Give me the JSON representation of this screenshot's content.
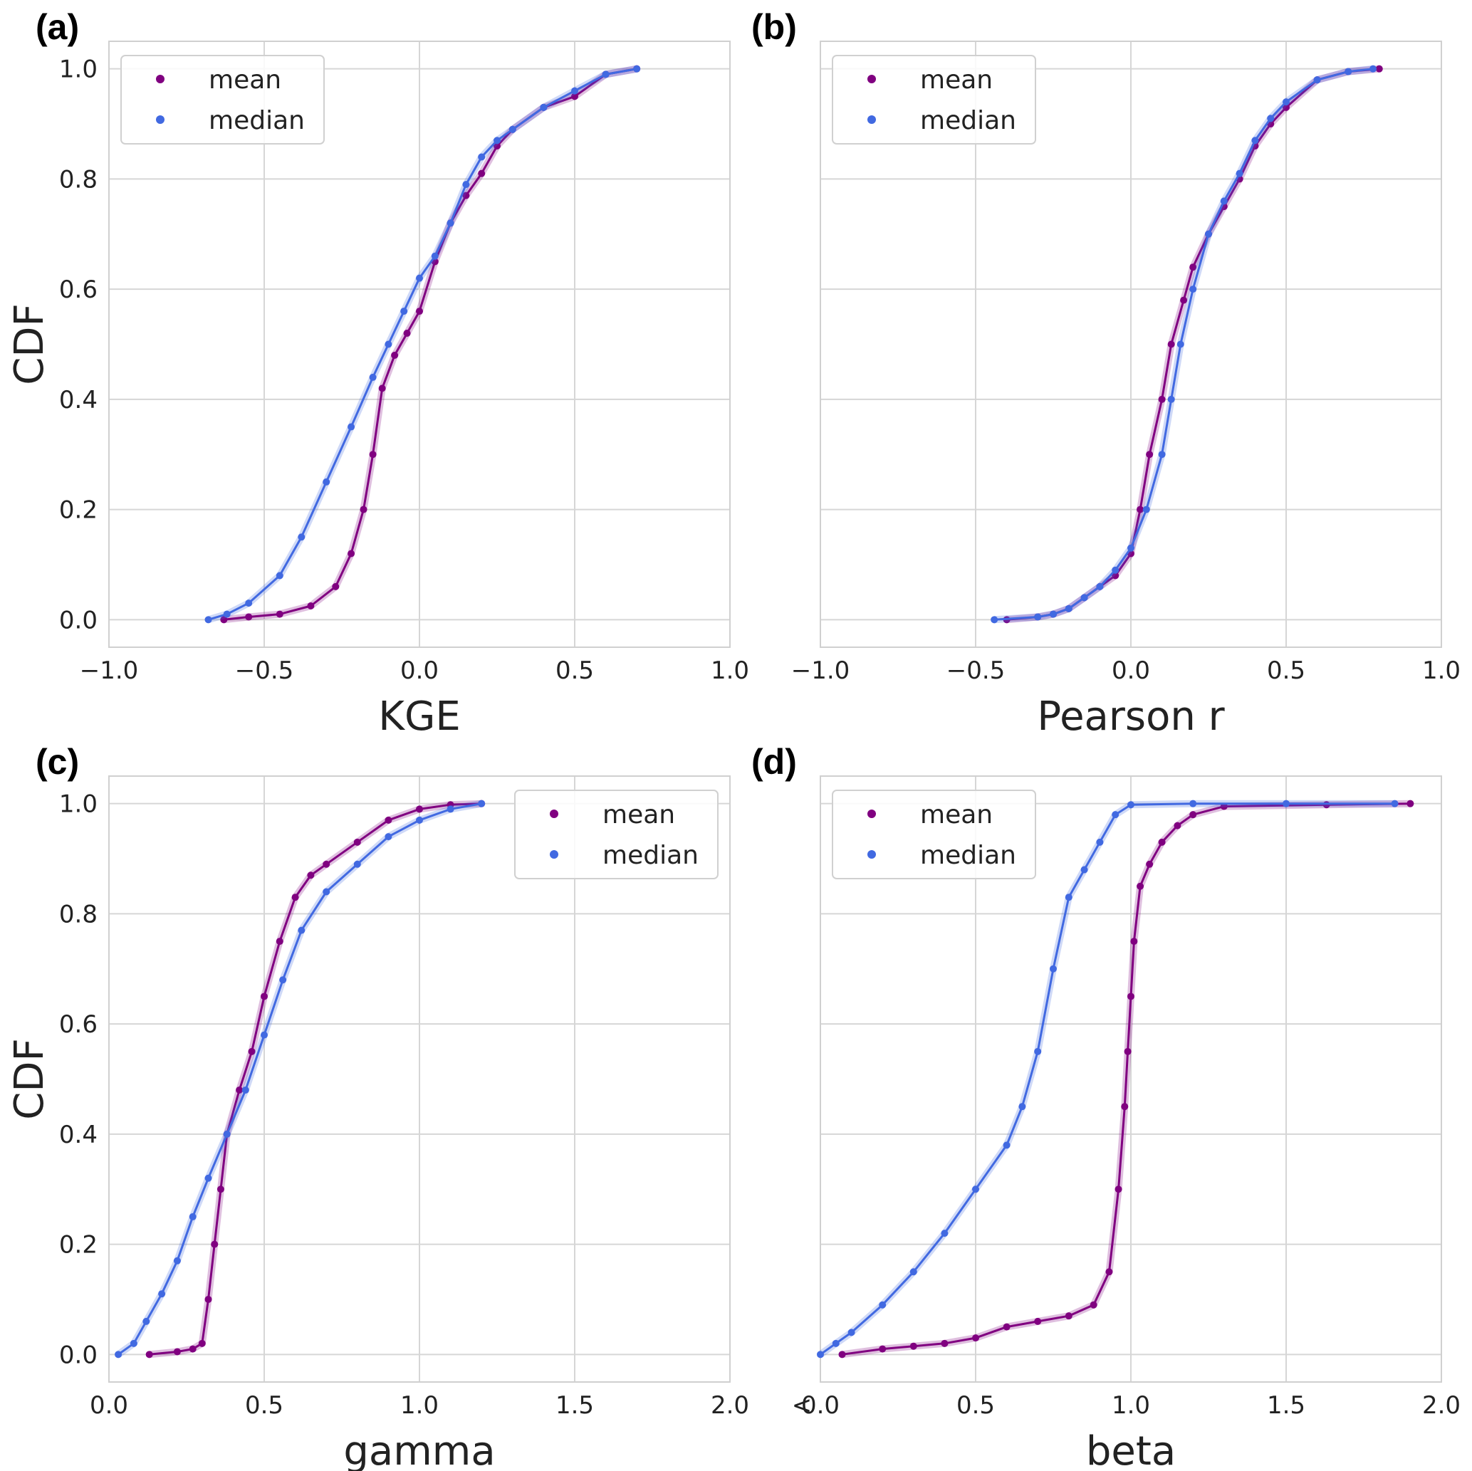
{
  "colors": {
    "mean": "#800080",
    "median": "#4169e1",
    "grid": "#d6d6d6"
  },
  "chart_data": [
    {
      "type": "line",
      "panel": "(a)",
      "xlabel": "KGE",
      "ylabel": "CDF",
      "xlim": [
        -1.0,
        1.0
      ],
      "ylim": [
        -0.05,
        1.05
      ],
      "xticks": [
        "−1.0",
        "−0.5",
        "0.0",
        "0.5",
        "1.0"
      ],
      "xtick_values": [
        -1.0,
        -0.5,
        0.0,
        0.5,
        1.0
      ],
      "yticks": [
        "0.0",
        "0.2",
        "0.4",
        "0.6",
        "0.8",
        "1.0"
      ],
      "ytick_values": [
        0,
        0.2,
        0.4,
        0.6,
        0.8,
        1.0
      ],
      "grid": true,
      "legend": "upper-left",
      "series": [
        {
          "name": "mean",
          "x": [
            -0.63,
            -0.55,
            -0.45,
            -0.35,
            -0.27,
            -0.22,
            -0.18,
            -0.15,
            -0.12,
            -0.08,
            -0.04,
            0.0,
            0.05,
            0.1,
            0.15,
            0.2,
            0.25,
            0.3,
            0.4,
            0.5,
            0.6,
            0.7
          ],
          "y": [
            0.0,
            0.005,
            0.01,
            0.025,
            0.06,
            0.12,
            0.2,
            0.3,
            0.42,
            0.48,
            0.52,
            0.56,
            0.65,
            0.72,
            0.77,
            0.81,
            0.86,
            0.89,
            0.93,
            0.95,
            0.99,
            1.0
          ]
        },
        {
          "name": "median",
          "x": [
            -0.68,
            -0.62,
            -0.55,
            -0.45,
            -0.38,
            -0.3,
            -0.22,
            -0.15,
            -0.1,
            -0.05,
            0.0,
            0.05,
            0.1,
            0.15,
            0.2,
            0.25,
            0.3,
            0.4,
            0.5,
            0.6,
            0.7
          ],
          "y": [
            0.0,
            0.01,
            0.03,
            0.08,
            0.15,
            0.25,
            0.35,
            0.44,
            0.5,
            0.56,
            0.62,
            0.66,
            0.72,
            0.79,
            0.84,
            0.87,
            0.89,
            0.93,
            0.96,
            0.99,
            1.0
          ]
        }
      ]
    },
    {
      "type": "line",
      "panel": "(b)",
      "xlabel": "Pearson r",
      "ylabel": "",
      "xlim": [
        -1.0,
        1.0
      ],
      "ylim": [
        -0.05,
        1.05
      ],
      "xticks": [
        "−1.0",
        "−0.5",
        "0.0",
        "0.5",
        "1.0"
      ],
      "xtick_values": [
        -1.0,
        -0.5,
        0.0,
        0.5,
        1.0
      ],
      "yticks": [],
      "ytick_values": [
        0,
        0.2,
        0.4,
        0.6,
        0.8,
        1.0
      ],
      "grid": true,
      "legend": "upper-left",
      "series": [
        {
          "name": "mean",
          "x": [
            -0.4,
            -0.3,
            -0.25,
            -0.2,
            -0.15,
            -0.1,
            -0.05,
            0.0,
            0.03,
            0.06,
            0.1,
            0.13,
            0.17,
            0.2,
            0.25,
            0.3,
            0.35,
            0.4,
            0.45,
            0.5,
            0.6,
            0.7,
            0.8
          ],
          "y": [
            0.0,
            0.005,
            0.01,
            0.02,
            0.04,
            0.06,
            0.08,
            0.12,
            0.2,
            0.3,
            0.4,
            0.5,
            0.58,
            0.64,
            0.7,
            0.75,
            0.8,
            0.86,
            0.9,
            0.93,
            0.98,
            0.995,
            1.0
          ]
        },
        {
          "name": "median",
          "x": [
            -0.44,
            -0.3,
            -0.25,
            -0.2,
            -0.15,
            -0.1,
            -0.05,
            0.0,
            0.05,
            0.1,
            0.13,
            0.16,
            0.2,
            0.25,
            0.3,
            0.35,
            0.4,
            0.45,
            0.5,
            0.6,
            0.7,
            0.78
          ],
          "y": [
            0.0,
            0.005,
            0.01,
            0.02,
            0.04,
            0.06,
            0.09,
            0.13,
            0.2,
            0.3,
            0.4,
            0.5,
            0.6,
            0.7,
            0.76,
            0.81,
            0.87,
            0.91,
            0.94,
            0.98,
            0.995,
            1.0
          ]
        }
      ]
    },
    {
      "type": "line",
      "panel": "(c)",
      "xlabel": "gamma",
      "ylabel": "CDF",
      "xlim": [
        0.0,
        2.0
      ],
      "ylim": [
        -0.05,
        1.05
      ],
      "xticks": [
        "0.0",
        "0.5",
        "1.0",
        "1.5",
        "2.0"
      ],
      "xtick_values": [
        0.0,
        0.5,
        1.0,
        1.5,
        2.0
      ],
      "yticks": [
        "0.0",
        "0.2",
        "0.4",
        "0.6",
        "0.8",
        "1.0"
      ],
      "ytick_values": [
        0,
        0.2,
        0.4,
        0.6,
        0.8,
        1.0
      ],
      "grid": true,
      "legend": "upper-right",
      "series": [
        {
          "name": "mean",
          "x": [
            0.13,
            0.22,
            0.27,
            0.3,
            0.32,
            0.34,
            0.36,
            0.38,
            0.42,
            0.46,
            0.5,
            0.55,
            0.6,
            0.65,
            0.7,
            0.8,
            0.9,
            1.0,
            1.1,
            1.2
          ],
          "y": [
            0.0,
            0.005,
            0.01,
            0.02,
            0.1,
            0.2,
            0.3,
            0.4,
            0.48,
            0.55,
            0.65,
            0.75,
            0.83,
            0.87,
            0.89,
            0.93,
            0.97,
            0.99,
            0.998,
            1.0
          ]
        },
        {
          "name": "median",
          "x": [
            0.03,
            0.08,
            0.12,
            0.17,
            0.22,
            0.27,
            0.32,
            0.38,
            0.44,
            0.5,
            0.56,
            0.62,
            0.7,
            0.8,
            0.9,
            1.0,
            1.1,
            1.2
          ],
          "y": [
            0.0,
            0.02,
            0.06,
            0.11,
            0.17,
            0.25,
            0.32,
            0.4,
            0.48,
            0.58,
            0.68,
            0.77,
            0.84,
            0.89,
            0.94,
            0.97,
            0.99,
            1.0
          ]
        }
      ]
    },
    {
      "type": "line",
      "panel": "(d)",
      "xlabel": "beta",
      "ylabel": "",
      "xlim": [
        0.0,
        2.0
      ],
      "ylim": [
        -0.05,
        1.05
      ],
      "xticks": [
        "0.0",
        "0.5",
        "1.0",
        "1.5",
        "2.0"
      ],
      "xtick_values": [
        0.0,
        0.5,
        1.0,
        1.5,
        2.0
      ],
      "yticks": [],
      "ytick_values": [
        0,
        0.2,
        0.4,
        0.6,
        0.8,
        1.0
      ],
      "x_extra_label": "<",
      "grid": true,
      "legend": "upper-left",
      "series": [
        {
          "name": "mean",
          "x": [
            0.07,
            0.2,
            0.3,
            0.4,
            0.5,
            0.6,
            0.7,
            0.8,
            0.88,
            0.93,
            0.96,
            0.98,
            0.99,
            1.0,
            1.01,
            1.03,
            1.06,
            1.1,
            1.15,
            1.2,
            1.3,
            1.63,
            1.9
          ],
          "y": [
            0.0,
            0.01,
            0.015,
            0.02,
            0.03,
            0.05,
            0.06,
            0.07,
            0.09,
            0.15,
            0.3,
            0.45,
            0.55,
            0.65,
            0.75,
            0.85,
            0.89,
            0.93,
            0.96,
            0.98,
            0.995,
            0.998,
            1.0
          ]
        },
        {
          "name": "median",
          "x": [
            0.0,
            0.05,
            0.1,
            0.2,
            0.3,
            0.4,
            0.5,
            0.6,
            0.65,
            0.7,
            0.75,
            0.8,
            0.85,
            0.9,
            0.95,
            1.0,
            1.2,
            1.5,
            1.85
          ],
          "y": [
            0.0,
            0.02,
            0.04,
            0.09,
            0.15,
            0.22,
            0.3,
            0.38,
            0.45,
            0.55,
            0.7,
            0.83,
            0.88,
            0.93,
            0.98,
            0.998,
            1.0,
            1.0,
            1.0
          ]
        }
      ]
    }
  ]
}
